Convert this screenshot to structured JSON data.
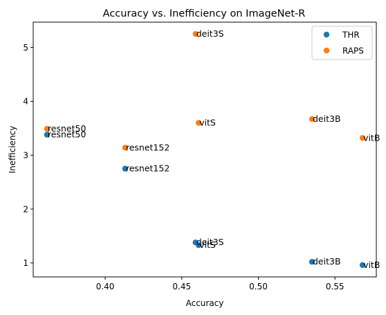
{
  "chart_data": {
    "type": "scatter",
    "title": "Accuracy vs. Inefficiency on ImageNet-R",
    "xlabel": "Accuracy",
    "ylabel": "Inefficiency",
    "xlim": [
      0.353,
      0.577
    ],
    "ylim": [
      0.74,
      5.47
    ],
    "xticks": [
      "0.40",
      "0.45",
      "0.50",
      "0.55"
    ],
    "xtick_values": [
      0.4,
      0.45,
      0.5,
      0.55
    ],
    "yticks": [
      "1",
      "2",
      "3",
      "4",
      "5"
    ],
    "ytick_values": [
      1,
      2,
      3,
      4,
      5
    ],
    "grid": false,
    "legend_position": "top-right",
    "series": [
      {
        "name": "THR",
        "color": "#1f77b4",
        "points": [
          {
            "label": "resnet50",
            "x": 0.362,
            "y": 3.38
          },
          {
            "label": "resnet152",
            "x": 0.413,
            "y": 2.75
          },
          {
            "label": "deit3S",
            "x": 0.459,
            "y": 1.38
          },
          {
            "label": "vitS",
            "x": 0.461,
            "y": 1.33
          },
          {
            "label": "deit3B",
            "x": 0.535,
            "y": 1.02
          },
          {
            "label": "vitB",
            "x": 0.568,
            "y": 0.96
          }
        ]
      },
      {
        "name": "RAPS",
        "color": "#ff7f0e",
        "points": [
          {
            "label": "resnet50",
            "x": 0.362,
            "y": 3.49
          },
          {
            "label": "resnet152",
            "x": 0.413,
            "y": 3.14
          },
          {
            "label": "deit3S",
            "x": 0.459,
            "y": 5.25
          },
          {
            "label": "vitS",
            "x": 0.461,
            "y": 3.6
          },
          {
            "label": "deit3B",
            "x": 0.535,
            "y": 3.67
          },
          {
            "label": "vitB",
            "x": 0.568,
            "y": 3.32
          }
        ]
      }
    ]
  }
}
